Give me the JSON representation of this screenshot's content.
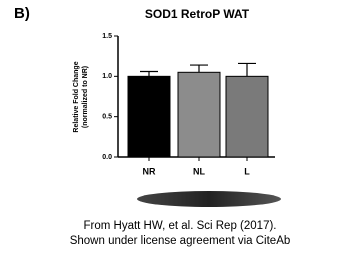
{
  "chart_data": {
    "type": "bar",
    "panel_label": "B)",
    "title": "SOD1 RetroP WAT",
    "ylabel": [
      "Relative Fold Change",
      "(normalized to NR)"
    ],
    "categories": [
      "NR",
      "NL",
      "L"
    ],
    "values": [
      1.0,
      1.05,
      1.0
    ],
    "errors": [
      0.06,
      0.09,
      0.16
    ],
    "colors": [
      "#000000",
      "#8c8c8c",
      "#7a7a7a"
    ],
    "ylim": [
      0,
      1.5
    ],
    "yticks": [
      {
        "value": 0,
        "label": "0.0"
      },
      {
        "value": 0.5,
        "label": "0.5"
      },
      {
        "value": 1,
        "label": "1.0"
      },
      {
        "value": 1.5,
        "label": "1.5"
      }
    ]
  },
  "caption": [
    "From Hyatt HW, et al. Sci Rep (2017).",
    "Shown under license agreement via CiteAb"
  ]
}
